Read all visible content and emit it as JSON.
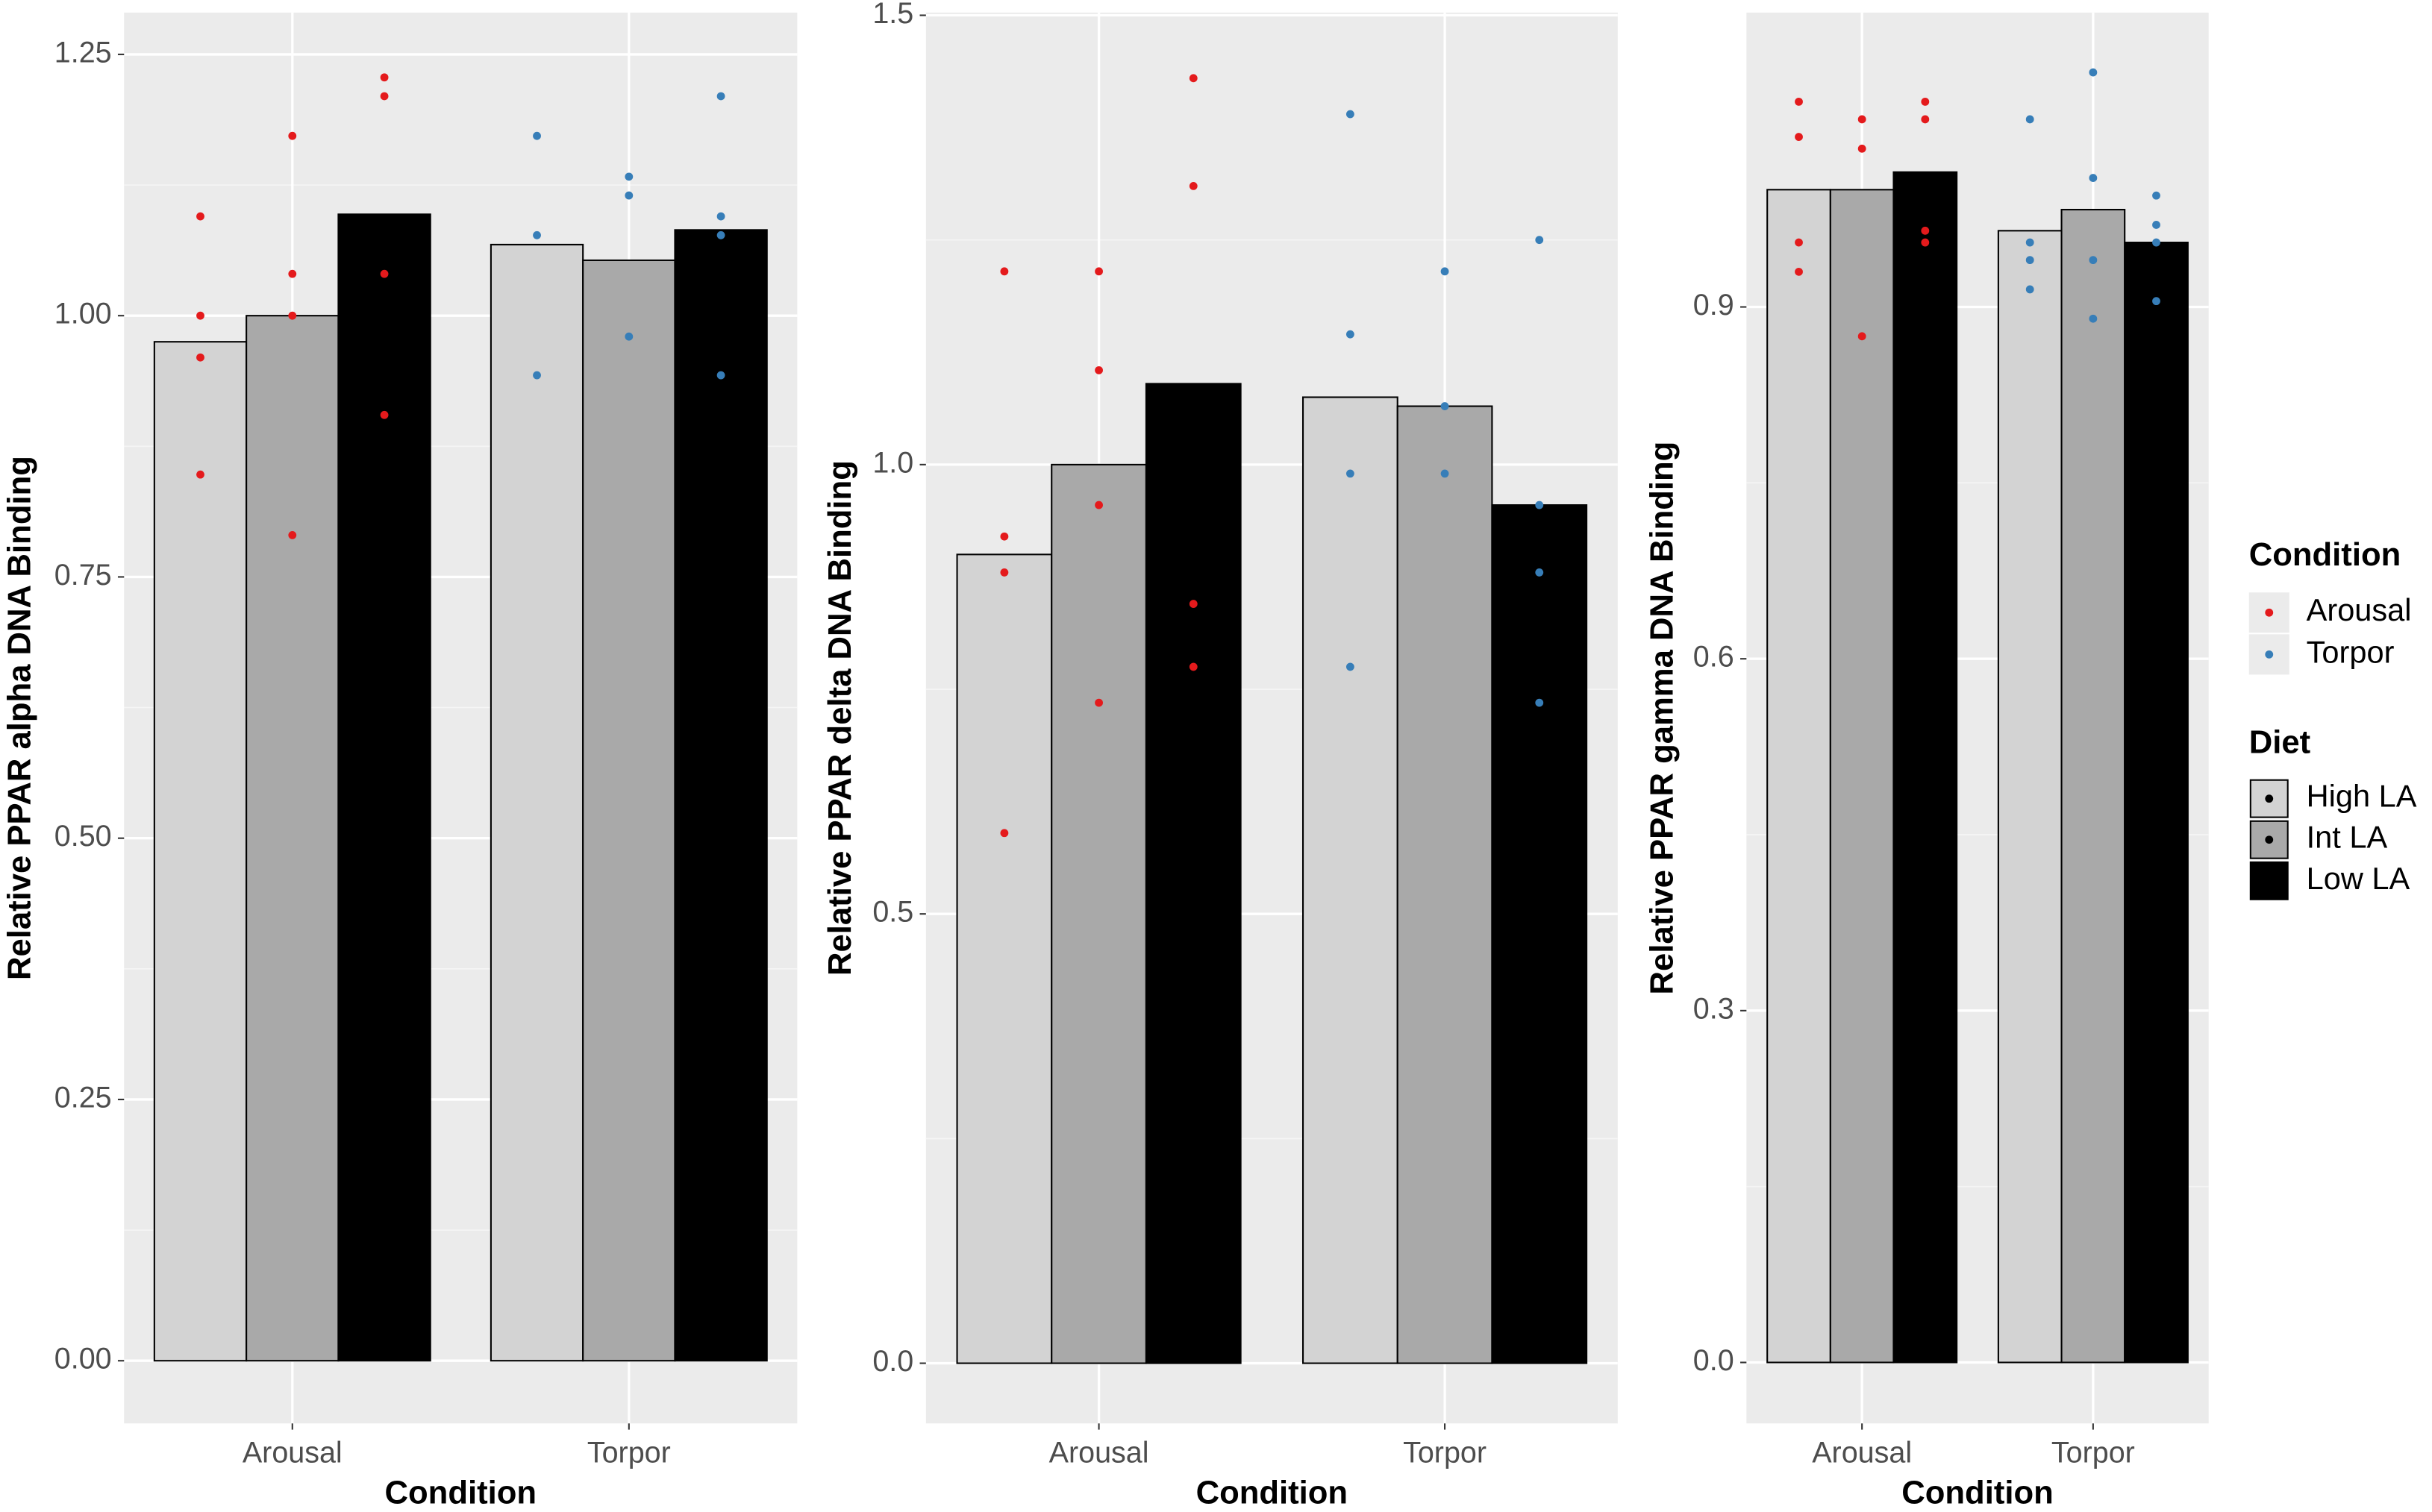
{
  "conditions": {
    "title": "Condition",
    "items": [
      {
        "name": "Arousal",
        "color": "#e41a1c"
      },
      {
        "name": "Torpor",
        "color": "#377eb8"
      }
    ]
  },
  "diets": {
    "title": "Diet",
    "items": [
      {
        "name": "High LA",
        "fill": "#d3d3d3"
      },
      {
        "name": "Int LA",
        "fill": "#a9a9a9"
      },
      {
        "name": "Low LA",
        "fill": "#000000"
      }
    ]
  },
  "chart_data": [
    {
      "type": "bar",
      "ylabel": "Relative PPAR alpha DNA Binding",
      "xlabel": "Condition",
      "categories": [
        "Arousal",
        "Torpor"
      ],
      "series": [
        {
          "values": [
            0.975,
            1.068
          ]
        },
        {
          "values": [
            1.0,
            1.053
          ]
        },
        {
          "values": [
            1.097,
            1.082
          ]
        }
      ],
      "points": [
        [
          [
            1.095,
            1.0,
            0.96,
            0.848
          ],
          [
            1.172,
            1.04,
            1.0,
            0.79
          ],
          [
            1.228,
            1.21,
            1.04,
            0.905
          ]
        ],
        [
          [
            1.172,
            1.077,
            0.943
          ],
          [
            1.133,
            1.115,
            0.98
          ],
          [
            1.21,
            1.095,
            1.077,
            0.943
          ]
        ]
      ],
      "ylim": [
        -0.06,
        1.29
      ],
      "yticks": [
        {
          "value": 0,
          "label": "0.00"
        },
        {
          "value": 0.25,
          "label": "0.25"
        },
        {
          "value": 0.5,
          "label": "0.50"
        },
        {
          "value": 0.75,
          "label": "0.75"
        },
        {
          "value": 1,
          "label": "1.00"
        },
        {
          "value": 1.25,
          "label": "1.25"
        }
      ],
      "grid": true
    },
    {
      "type": "bar",
      "ylabel": "Relative PPAR delta DNA Binding",
      "xlabel": "Condition",
      "categories": [
        "Arousal",
        "Torpor"
      ],
      "series": [
        {
          "values": [
            0.9,
            1.075
          ]
        },
        {
          "values": [
            1.0,
            1.065
          ]
        },
        {
          "values": [
            1.09,
            0.955
          ]
        }
      ],
      "points": [
        [
          [
            1.215,
            0.92,
            0.88,
            0.59
          ],
          [
            1.215,
            1.105,
            0.955,
            0.735
          ],
          [
            1.43,
            1.31,
            0.845,
            0.775
          ]
        ],
        [
          [
            1.39,
            1.145,
            0.99,
            0.775
          ],
          [
            1.215,
            1.065,
            0.99
          ],
          [
            1.25,
            0.955,
            0.88,
            0.735
          ]
        ]
      ],
      "ylim": [
        -0.067,
        1.503
      ],
      "yticks": [
        {
          "value": 0,
          "label": "0.0"
        },
        {
          "value": 0.5,
          "label": "0.5"
        },
        {
          "value": 1,
          "label": "1.0"
        },
        {
          "value": 1.5,
          "label": "1.5"
        }
      ],
      "grid": true
    },
    {
      "type": "bar",
      "ylabel": "Relative PPAR gamma DNA Binding",
      "xlabel": "Condition",
      "categories": [
        "Arousal",
        "Torpor"
      ],
      "series": [
        {
          "values": [
            1.0,
            0.965
          ]
        },
        {
          "values": [
            1.0,
            0.983
          ]
        },
        {
          "values": [
            1.015,
            0.955
          ]
        }
      ],
      "points": [
        [
          [
            1.075,
            1.045,
            0.955,
            0.93
          ],
          [
            1.06,
            1.035,
            0.875
          ],
          [
            1.075,
            1.06,
            0.965,
            0.955
          ]
        ],
        [
          [
            1.06,
            0.955,
            0.94,
            0.915
          ],
          [
            1.1,
            1.01,
            0.94,
            0.89
          ],
          [
            0.995,
            0.97,
            0.955,
            0.905
          ]
        ]
      ],
      "ylim": [
        -0.052,
        1.151
      ],
      "yticks": [
        {
          "value": 0,
          "label": "0.0"
        },
        {
          "value": 0.3,
          "label": "0.3"
        },
        {
          "value": 0.6,
          "label": "0.6"
        },
        {
          "value": 0.9,
          "label": "0.9"
        }
      ],
      "grid": true
    }
  ]
}
